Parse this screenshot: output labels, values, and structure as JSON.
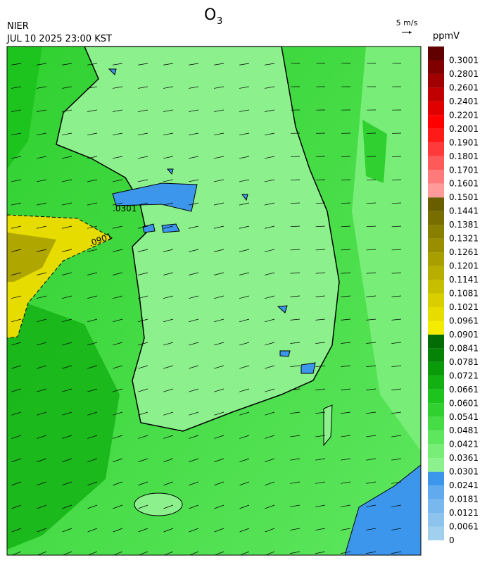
{
  "header": {
    "title": "O",
    "title_sub": "3",
    "source": "NIER",
    "datetime": "JUL 10 2025 23:00 KST",
    "wind_ref": "5 m/s"
  },
  "contour_labels": [
    ".0301",
    ".0901"
  ],
  "legend": {
    "unit": "ppmV",
    "levels": [
      0,
      0.0061,
      0.0121,
      0.0181,
      0.0241,
      0.0301,
      0.0361,
      0.0421,
      0.0481,
      0.0541,
      0.0601,
      0.0661,
      0.0721,
      0.0781,
      0.0841,
      0.0901,
      0.0961,
      0.1021,
      0.1081,
      0.1141,
      0.1201,
      0.1261,
      0.1321,
      0.1381,
      0.1441,
      0.1501,
      0.1601,
      0.1701,
      0.1801,
      0.1901,
      0.2001,
      0.2201,
      0.2401,
      0.2601,
      0.2801,
      0.3001
    ],
    "colors": [
      "#a0d0ee",
      "#8cc4ee",
      "#78b8ee",
      "#62aaee",
      "#3c96ec",
      "#8cf08c",
      "#78ee78",
      "#5ee65e",
      "#46dc46",
      "#30d030",
      "#1ec41e",
      "#12b012",
      "#0a9a0a",
      "#068206",
      "#046c04",
      "#f4ec00",
      "#e6dc00",
      "#d8ce00",
      "#c8be00",
      "#b8ae00",
      "#a89e00",
      "#988e00",
      "#887e00",
      "#786e00",
      "#685e00",
      "#ff9a9a",
      "#ff7a7a",
      "#ff5a5a",
      "#ff3a3a",
      "#ff1a1a",
      "#ff0000",
      "#e00000",
      "#c00000",
      "#a00000",
      "#800000",
      "#600000"
    ]
  }
}
